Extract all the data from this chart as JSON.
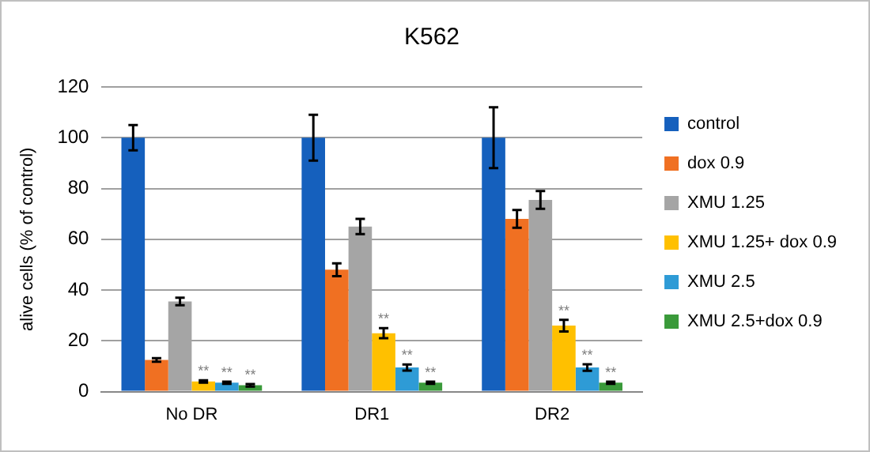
{
  "chart_data": {
    "type": "bar",
    "title": "K562",
    "ylabel": "alive cells (% of control)",
    "categories": [
      "No DR",
      "DR1",
      "DR2"
    ],
    "series": [
      {
        "name": "control",
        "color": "#1560bd",
        "values": [
          100,
          100,
          100
        ],
        "errors": [
          5,
          9,
          12
        ]
      },
      {
        "name": "dox 0.9",
        "color": "#f07022",
        "values": [
          12.5,
          48,
          68
        ],
        "errors": [
          0.7,
          2.5,
          3.5
        ]
      },
      {
        "name": "XMU 1.25",
        "color": "#a5a5a5",
        "values": [
          35.5,
          65,
          75.5
        ],
        "errors": [
          1.5,
          3,
          3.5
        ]
      },
      {
        "name": "XMU 1.25+ dox 0.9",
        "color": "#ffc000",
        "values": [
          4,
          23,
          26
        ],
        "errors": [
          0.5,
          2,
          2.3
        ],
        "value_labels": [
          "**",
          "**",
          "**"
        ]
      },
      {
        "name": "XMU 2.5",
        "color": "#2e9bd6",
        "values": [
          3.5,
          9.5,
          9.5
        ],
        "errors": [
          0.4,
          1.2,
          1.3
        ],
        "value_labels": [
          "**",
          "**",
          "**"
        ]
      },
      {
        "name": "XMU 2.5+dox 0.9",
        "color": "#3a9a3a",
        "values": [
          2.5,
          3.5,
          3.5
        ],
        "errors": [
          0.5,
          0.4,
          0.4
        ],
        "value_labels": [
          "**",
          "**",
          "**"
        ]
      }
    ],
    "ylim": [
      0,
      120
    ],
    "yticks": [
      0,
      20,
      40,
      60,
      80,
      100,
      120
    ],
    "grid": "y",
    "legend": "right"
  }
}
